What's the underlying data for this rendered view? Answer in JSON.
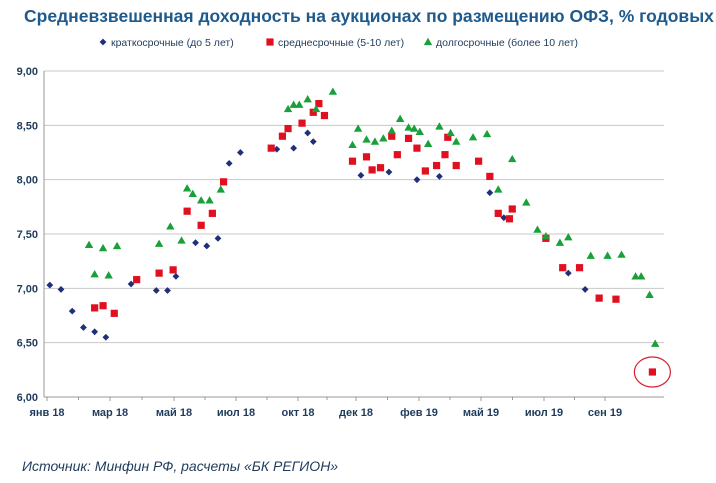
{
  "title": "Средневзвешенная доходность на аукционах по размещению ОФЗ, % годовых",
  "source": "Источник: Минфин РФ, расчеты «БК РЕГИОН»",
  "colors": {
    "short": "#1f2f7a",
    "medium": "#e01020",
    "long": "#1aa03a",
    "axis": "#9a9a9a",
    "grid": "#c8c8c8",
    "highlight": "#d9202e"
  },
  "chart_data": {
    "type": "scatter",
    "title": "Средневзвешенная доходность на аукционах по размещению ОФЗ, % годовых",
    "xlabel": "",
    "ylabel": "",
    "ylim": [
      6.0,
      9.0
    ],
    "yticks": [
      "6,00",
      "6,50",
      "7,00",
      "7,50",
      "8,00",
      "8,50",
      "9,00"
    ],
    "ytick_values": [
      6.0,
      6.5,
      7.0,
      7.5,
      8.0,
      8.5,
      9.0
    ],
    "xlim": [
      0,
      21.8
    ],
    "xticks": [
      "янв 18",
      "мар 18",
      "май 18",
      "июл 18",
      "окт 18",
      "дек 18",
      "фев 19",
      "май 19",
      "июл 19",
      "сен 19"
    ],
    "xtick_values": [
      0,
      2,
      4,
      6,
      9,
      11,
      13,
      16,
      18,
      20
    ],
    "x_unit": "months since Jan 2018",
    "grid": true,
    "legend_position": "top",
    "series": [
      {
        "name": "краткосрочные (до 5 лет)",
        "marker": "diamond",
        "points": [
          [
            0.1,
            7.03
          ],
          [
            0.5,
            6.99
          ],
          [
            0.9,
            6.79
          ],
          [
            1.3,
            6.64
          ],
          [
            1.7,
            6.6
          ],
          [
            2.1,
            6.55
          ],
          [
            3.0,
            7.04
          ],
          [
            3.9,
            6.98
          ],
          [
            4.3,
            6.98
          ],
          [
            4.6,
            7.11
          ],
          [
            5.3,
            7.42
          ],
          [
            5.7,
            7.39
          ],
          [
            6.1,
            7.46
          ],
          [
            6.5,
            8.15
          ],
          [
            6.9,
            8.25
          ],
          [
            8.2,
            8.28
          ],
          [
            8.8,
            8.29
          ],
          [
            9.3,
            8.43
          ],
          [
            9.5,
            8.35
          ],
          [
            11.2,
            8.04
          ],
          [
            12.2,
            8.07
          ],
          [
            13.2,
            8.0
          ],
          [
            14.0,
            8.03
          ],
          [
            15.8,
            7.88
          ],
          [
            16.3,
            7.65
          ],
          [
            18.6,
            7.14
          ],
          [
            19.2,
            6.99
          ]
        ]
      },
      {
        "name": "среднесрочные (5-10 лет)",
        "marker": "square",
        "points": [
          [
            1.7,
            6.82
          ],
          [
            2.0,
            6.84
          ],
          [
            2.4,
            6.77
          ],
          [
            3.2,
            7.08
          ],
          [
            4.0,
            7.14
          ],
          [
            4.5,
            7.17
          ],
          [
            5.0,
            7.71
          ],
          [
            5.5,
            7.58
          ],
          [
            5.9,
            7.69
          ],
          [
            6.3,
            7.98
          ],
          [
            8.0,
            8.29
          ],
          [
            8.4,
            8.4
          ],
          [
            8.6,
            8.47
          ],
          [
            9.1,
            8.52
          ],
          [
            9.5,
            8.62
          ],
          [
            9.7,
            8.7
          ],
          [
            9.9,
            8.59
          ],
          [
            10.9,
            8.17
          ],
          [
            11.4,
            8.21
          ],
          [
            11.6,
            8.09
          ],
          [
            11.9,
            8.11
          ],
          [
            12.3,
            8.4
          ],
          [
            12.5,
            8.23
          ],
          [
            12.9,
            8.38
          ],
          [
            13.2,
            8.29
          ],
          [
            13.5,
            8.08
          ],
          [
            13.9,
            8.13
          ],
          [
            14.2,
            8.23
          ],
          [
            14.6,
            8.13
          ],
          [
            14.3,
            8.39
          ],
          [
            15.4,
            8.17
          ],
          [
            15.8,
            8.03
          ],
          [
            16.1,
            7.69
          ],
          [
            16.6,
            7.73
          ],
          [
            16.5,
            7.64
          ],
          [
            17.8,
            7.46
          ],
          [
            18.4,
            7.19
          ],
          [
            19.0,
            7.19
          ],
          [
            19.7,
            6.91
          ],
          [
            20.3,
            6.9
          ],
          [
            21.6,
            6.23
          ]
        ]
      },
      {
        "name": "долгосрочные (более 10 лет)",
        "marker": "triangle",
        "points": [
          [
            1.5,
            7.4
          ],
          [
            1.7,
            7.13
          ],
          [
            2.0,
            7.37
          ],
          [
            2.2,
            7.12
          ],
          [
            2.5,
            7.39
          ],
          [
            4.0,
            7.41
          ],
          [
            4.4,
            7.57
          ],
          [
            4.8,
            7.44
          ],
          [
            5.0,
            7.92
          ],
          [
            5.2,
            7.87
          ],
          [
            5.5,
            7.81
          ],
          [
            5.8,
            7.81
          ],
          [
            6.2,
            7.91
          ],
          [
            8.6,
            8.65
          ],
          [
            8.8,
            8.69
          ],
          [
            9.0,
            8.69
          ],
          [
            9.3,
            8.74
          ],
          [
            9.6,
            8.65
          ],
          [
            10.2,
            8.81
          ],
          [
            10.9,
            8.32
          ],
          [
            11.1,
            8.47
          ],
          [
            11.4,
            8.37
          ],
          [
            11.7,
            8.35
          ],
          [
            12.0,
            8.38
          ],
          [
            12.3,
            8.45
          ],
          [
            12.6,
            8.56
          ],
          [
            12.9,
            8.48
          ],
          [
            13.1,
            8.47
          ],
          [
            13.3,
            8.44
          ],
          [
            13.6,
            8.33
          ],
          [
            14.0,
            8.49
          ],
          [
            14.4,
            8.43
          ],
          [
            14.6,
            8.35
          ],
          [
            15.2,
            8.39
          ],
          [
            15.7,
            8.42
          ],
          [
            16.1,
            7.91
          ],
          [
            16.6,
            8.19
          ],
          [
            17.1,
            7.79
          ],
          [
            17.5,
            7.54
          ],
          [
            17.8,
            7.48
          ],
          [
            18.3,
            7.42
          ],
          [
            18.6,
            7.47
          ],
          [
            19.4,
            7.3
          ],
          [
            20.0,
            7.3
          ],
          [
            20.5,
            7.31
          ],
          [
            21.0,
            7.11
          ],
          [
            21.2,
            7.11
          ],
          [
            21.5,
            6.94
          ],
          [
            21.7,
            6.49
          ]
        ]
      }
    ],
    "annotation": {
      "type": "circle",
      "label": "last auction highlight",
      "x": 21.6,
      "y": 6.23
    }
  }
}
